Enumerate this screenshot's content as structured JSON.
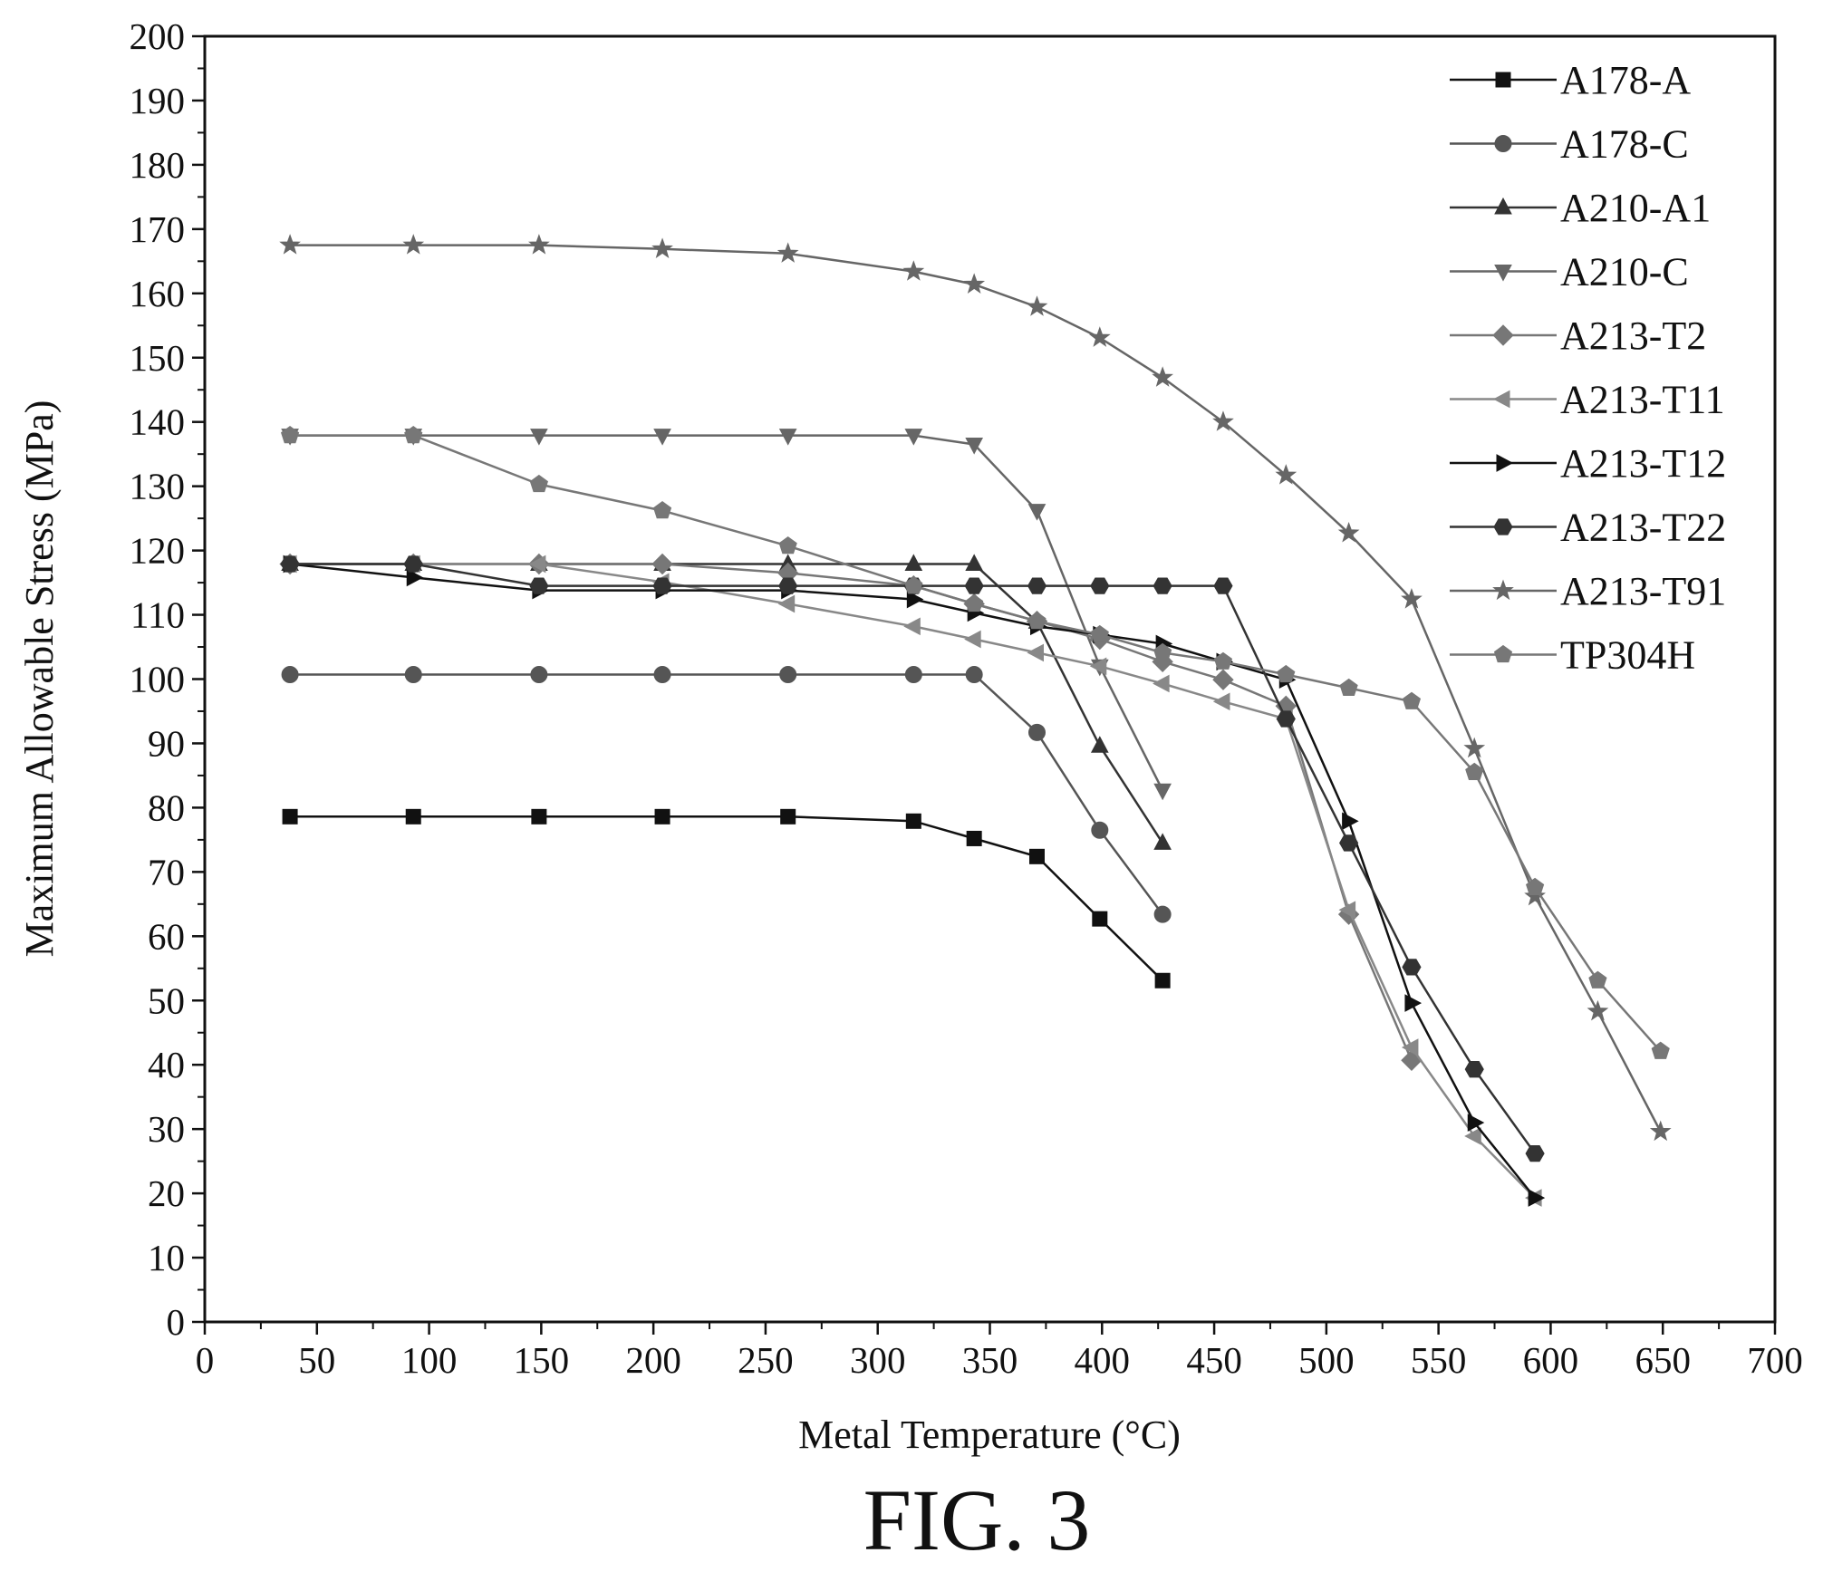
{
  "figure": {
    "caption": "FIG. 3"
  },
  "chart_data": {
    "type": "line",
    "title": "",
    "xlabel": "Metal Temperature (°C)",
    "ylabel": "Maximum Allowable Stress (MPa)",
    "xlim": [
      0,
      700
    ],
    "ylim": [
      0,
      200
    ],
    "xticks": [
      0,
      50,
      100,
      150,
      200,
      250,
      300,
      350,
      400,
      450,
      500,
      550,
      600,
      650,
      700
    ],
    "yticks": [
      0,
      10,
      20,
      30,
      40,
      50,
      60,
      70,
      80,
      90,
      100,
      110,
      120,
      130,
      140,
      150,
      160,
      170,
      180,
      190,
      200
    ],
    "grid": false,
    "legend_position": "top-right",
    "series": [
      {
        "name": "A178-A",
        "marker": "square",
        "color": "#111111",
        "x": [
          38,
          93,
          149,
          204,
          260,
          316,
          343,
          371,
          399,
          427
        ],
        "y": [
          78.6,
          78.6,
          78.6,
          78.6,
          78.6,
          77.9,
          75.2,
          72.4,
          62.7,
          53.1
        ]
      },
      {
        "name": "A178-C",
        "marker": "circle",
        "color": "#555555",
        "x": [
          38,
          93,
          149,
          204,
          260,
          316,
          343,
          371,
          399,
          427
        ],
        "y": [
          100.7,
          100.7,
          100.7,
          100.7,
          100.7,
          100.7,
          100.7,
          91.7,
          76.5,
          63.4
        ]
      },
      {
        "name": "A210-A1",
        "marker": "triangle-up",
        "color": "#333333",
        "x": [
          38,
          93,
          149,
          204,
          260,
          316,
          343,
          371,
          399,
          427
        ],
        "y": [
          117.9,
          117.9,
          117.9,
          117.9,
          117.9,
          117.9,
          117.9,
          108.9,
          89.6,
          74.5
        ]
      },
      {
        "name": "A210-C",
        "marker": "triangle-down",
        "color": "#666666",
        "x": [
          38,
          93,
          149,
          204,
          260,
          316,
          343,
          371,
          399,
          427
        ],
        "y": [
          137.9,
          137.9,
          137.9,
          137.9,
          137.9,
          137.9,
          136.5,
          126.2,
          102.0,
          82.7
        ]
      },
      {
        "name": "A213-T2",
        "marker": "diamond",
        "color": "#777777",
        "x": [
          38,
          93,
          149,
          204,
          260,
          316,
          343,
          371,
          399,
          427,
          454,
          482,
          510,
          538
        ],
        "y": [
          117.9,
          117.9,
          117.9,
          117.9,
          116.5,
          114.5,
          111.7,
          109.0,
          106.2,
          102.7,
          99.9,
          95.8,
          63.4,
          40.7
        ]
      },
      {
        "name": "A213-T11",
        "marker": "triangle-left",
        "color": "#888888",
        "x": [
          38,
          93,
          149,
          204,
          260,
          316,
          343,
          371,
          399,
          427,
          454,
          482,
          510,
          538,
          566,
          593
        ],
        "y": [
          117.9,
          117.9,
          117.9,
          115.1,
          111.7,
          108.2,
          106.2,
          104.1,
          102.0,
          99.3,
          96.5,
          93.8,
          64.1,
          42.7,
          28.9,
          19.3
        ]
      },
      {
        "name": "A213-T12",
        "marker": "triangle-right",
        "color": "#111111",
        "x": [
          38,
          93,
          149,
          204,
          260,
          316,
          343,
          371,
          399,
          427,
          454,
          482,
          510,
          538,
          566,
          593
        ],
        "y": [
          117.9,
          115.8,
          113.8,
          113.8,
          113.8,
          112.4,
          110.3,
          108.2,
          106.9,
          105.5,
          102.7,
          99.9,
          77.9,
          49.6,
          31.0,
          19.3
        ]
      },
      {
        "name": "A213-T22",
        "marker": "hexagon",
        "color": "#333333",
        "x": [
          38,
          93,
          149,
          204,
          260,
          316,
          343,
          371,
          399,
          427,
          454,
          482,
          510,
          538,
          566,
          593
        ],
        "y": [
          117.9,
          117.9,
          114.5,
          114.5,
          114.5,
          114.5,
          114.5,
          114.5,
          114.5,
          114.5,
          114.5,
          93.8,
          74.5,
          55.2,
          39.3,
          26.2
        ]
      },
      {
        "name": "A213-T91",
        "marker": "star",
        "color": "#666666",
        "x": [
          38,
          93,
          149,
          204,
          260,
          316,
          343,
          371,
          399,
          427,
          454,
          482,
          510,
          538,
          566,
          593,
          621,
          649
        ],
        "y": [
          167.5,
          167.5,
          167.5,
          166.9,
          166.2,
          163.4,
          161.4,
          157.9,
          153.1,
          146.9,
          140.0,
          131.7,
          122.7,
          112.4,
          89.2,
          66.2,
          48.3,
          29.6
        ]
      },
      {
        "name": "TP304H",
        "marker": "pentagon",
        "color": "#777777",
        "x": [
          38,
          93,
          149,
          204,
          260,
          316,
          343,
          371,
          399,
          427,
          454,
          482,
          510,
          538,
          566,
          593,
          621,
          649
        ],
        "y": [
          137.9,
          137.9,
          130.3,
          126.2,
          120.7,
          114.5,
          111.7,
          109.0,
          106.9,
          104.1,
          102.7,
          100.7,
          98.6,
          96.5,
          85.5,
          67.6,
          53.1,
          42.1
        ]
      }
    ]
  }
}
